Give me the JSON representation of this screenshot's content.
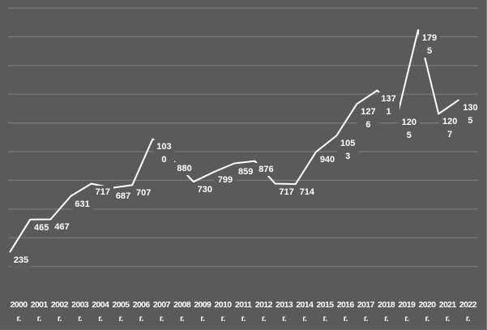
{
  "chart_data": {
    "type": "line",
    "title": "",
    "xlabel": "",
    "ylabel": "",
    "categories": [
      "2000 г.",
      "2001 г.",
      "2002 г.",
      "2003 г.",
      "2004 г.",
      "2005 г.",
      "2006 г.",
      "2007 г.",
      "2008 г.",
      "2009 г.",
      "2010 г.",
      "2011 г.",
      "2012 г.",
      "2013 г.",
      "2014 г.",
      "2015 г.",
      "2016 г.",
      "2017 г.",
      "2018 г.",
      "2019 г.",
      "2020 г.",
      "2021 г.",
      "2022 г."
    ],
    "category_years": [
      "2000",
      "2001",
      "2002",
      "2003",
      "2004",
      "2005",
      "2006",
      "2007",
      "2008",
      "2009",
      "2010",
      "2011",
      "2012",
      "2013",
      "2014",
      "2015",
      "2016",
      "2017",
      "2018",
      "2019",
      "2020",
      "2021",
      "2022"
    ],
    "category_suffix": "г.",
    "values": [
      235,
      465,
      467,
      631,
      717,
      687,
      707,
      1030,
      880,
      730,
      799,
      859,
      876,
      717,
      714,
      940,
      1053,
      1276,
      1371,
      1205,
      1795,
      1207,
      1305
    ],
    "data_labels": [
      "235",
      "465",
      "467",
      "631",
      "717",
      "687",
      "707",
      "1030",
      "880",
      "730",
      "799",
      "859",
      "876",
      "717",
      "714",
      "940",
      "1053",
      "1276",
      "1371",
      "1205",
      "1795",
      "1207",
      "1305"
    ],
    "series": [
      {
        "name": "",
        "values": [
          235,
          465,
          467,
          631,
          717,
          687,
          707,
          1030,
          880,
          730,
          799,
          859,
          876,
          717,
          714,
          940,
          1053,
          1276,
          1371,
          1205,
          1795,
          1207,
          1305
        ]
      }
    ],
    "grid": true,
    "gridline_count": 10,
    "y_axis_visible": false,
    "legend": "none",
    "colors": {
      "background": "#5a5a5a",
      "line": "#ffffff",
      "grid": "#7a7a7a",
      "text": "#ffffff"
    }
  }
}
